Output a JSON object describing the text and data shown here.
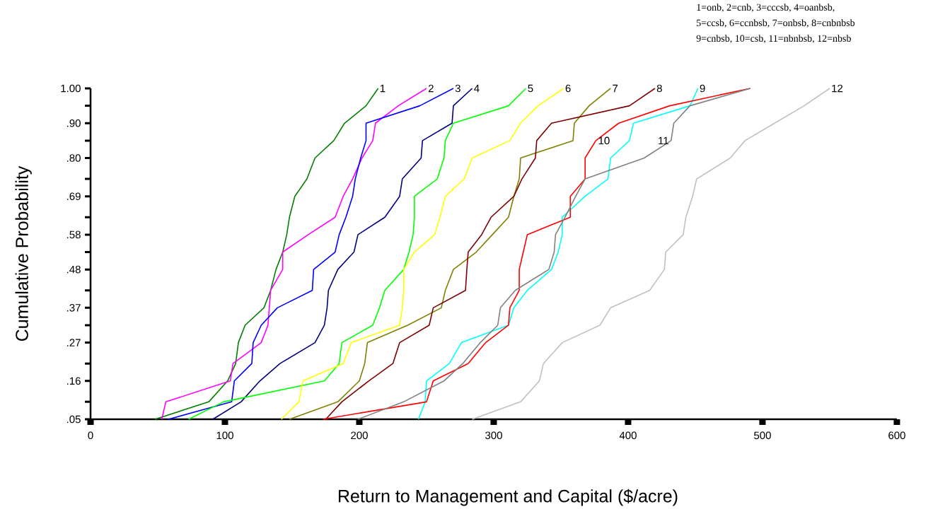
{
  "chart_data": {
    "type": "line",
    "xlabel": "Return to Management and Capital ($/acre)",
    "ylabel": "Cumulative Probability",
    "annotations": [
      "1=onb, 2=cnb, 3=cccsb, 4=oanbsb,",
      "5=ccsb, 6=ccnbsb, 7=onbsb, 8=cnbnbsb",
      "9=cnbsb, 10=csb, 11=nbnbsb, 12=nbsb"
    ],
    "xlim": [
      0,
      600
    ],
    "xticks": [
      0,
      100,
      200,
      300,
      400,
      500,
      600
    ],
    "ylim": [
      0.05,
      1.0
    ],
    "yticks": [
      {
        "value": 0.05,
        "label": ".05"
      },
      {
        "value": 0.1,
        "label": null
      },
      {
        "value": 0.16,
        "label": ".16"
      },
      {
        "value": 0.21,
        "label": null
      },
      {
        "value": 0.27,
        "label": ".27"
      },
      {
        "value": 0.32,
        "label": null
      },
      {
        "value": 0.37,
        "label": ".37"
      },
      {
        "value": 0.42,
        "label": null
      },
      {
        "value": 0.48,
        "label": ".48"
      },
      {
        "value": 0.53,
        "label": null
      },
      {
        "value": 0.58,
        "label": ".58"
      },
      {
        "value": 0.63,
        "label": null
      },
      {
        "value": 0.69,
        "label": ".69"
      },
      {
        "value": 0.74,
        "label": null
      },
      {
        "value": 0.8,
        "label": ".80"
      },
      {
        "value": 0.85,
        "label": null
      },
      {
        "value": 0.9,
        "label": ".90"
      },
      {
        "value": 0.95,
        "label": null
      },
      {
        "value": 1.0,
        "label": "1.00"
      }
    ],
    "series": [
      {
        "name": "1",
        "color": "#007f00",
        "x": [
          48,
          88,
          102,
          108,
          110,
          115,
          129,
          134,
          138,
          143,
          146,
          148,
          152,
          161,
          167,
          181,
          189,
          205,
          214
        ],
        "values": [
          0.05,
          0.1,
          0.16,
          0.21,
          0.27,
          0.32,
          0.37,
          0.42,
          0.48,
          0.53,
          0.58,
          0.63,
          0.69,
          0.74,
          0.8,
          0.85,
          0.9,
          0.95,
          1.0
        ]
      },
      {
        "name": "2",
        "color": "#ff00ff",
        "x": [
          53,
          56,
          104,
          106,
          127,
          132,
          133,
          134,
          143,
          143,
          162,
          182,
          188,
          195,
          202,
          210,
          212,
          229,
          250
        ],
        "values": [
          0.05,
          0.1,
          0.16,
          0.21,
          0.27,
          0.32,
          0.37,
          0.42,
          0.48,
          0.53,
          0.58,
          0.63,
          0.69,
          0.74,
          0.8,
          0.85,
          0.9,
          0.95,
          1.0
        ]
      },
      {
        "name": "3",
        "color": "#0000ff",
        "x": [
          58,
          105,
          107,
          120,
          121,
          127,
          139,
          165,
          166,
          182,
          185,
          190,
          195,
          197,
          201,
          205,
          205,
          245,
          270
        ],
        "values": [
          0.05,
          0.1,
          0.16,
          0.21,
          0.27,
          0.32,
          0.37,
          0.42,
          0.48,
          0.53,
          0.58,
          0.63,
          0.69,
          0.74,
          0.8,
          0.85,
          0.9,
          0.95,
          1.0
        ]
      },
      {
        "name": "4",
        "color": "#000080",
        "x": [
          91,
          112,
          126,
          141,
          167,
          174,
          176,
          177,
          184,
          196,
          199,
          219,
          230,
          232,
          246,
          247,
          269,
          270,
          284
        ],
        "values": [
          0.05,
          0.1,
          0.16,
          0.21,
          0.27,
          0.32,
          0.37,
          0.42,
          0.48,
          0.53,
          0.58,
          0.63,
          0.69,
          0.74,
          0.8,
          0.85,
          0.9,
          0.95,
          1.0
        ]
      },
      {
        "name": "5",
        "color": "#00ff00",
        "x": [
          73,
          99,
          174,
          185,
          187,
          210,
          215,
          219,
          233,
          237,
          240,
          241,
          241,
          258,
          263,
          264,
          270,
          311,
          324
        ],
        "values": [
          0.05,
          0.1,
          0.16,
          0.21,
          0.27,
          0.32,
          0.37,
          0.42,
          0.48,
          0.53,
          0.58,
          0.63,
          0.69,
          0.74,
          0.8,
          0.85,
          0.9,
          0.95,
          1.0
        ]
      },
      {
        "name": "6",
        "color": "#ffff00",
        "x": [
          142,
          155,
          158,
          188,
          194,
          230,
          232,
          233,
          233,
          241,
          256,
          260,
          264,
          278,
          284,
          312,
          320,
          333,
          352
        ],
        "values": [
          0.05,
          0.1,
          0.16,
          0.21,
          0.27,
          0.32,
          0.37,
          0.42,
          0.48,
          0.53,
          0.58,
          0.63,
          0.69,
          0.74,
          0.8,
          0.85,
          0.9,
          0.95,
          1.0
        ]
      },
      {
        "name": "7",
        "color": "#808000",
        "x": [
          148,
          184,
          200,
          204,
          206,
          236,
          261,
          264,
          270,
          287,
          299,
          311,
          315,
          319,
          320,
          359,
          360,
          371,
          387
        ],
        "values": [
          0.05,
          0.1,
          0.16,
          0.21,
          0.27,
          0.32,
          0.37,
          0.42,
          0.48,
          0.53,
          0.58,
          0.63,
          0.69,
          0.74,
          0.8,
          0.85,
          0.9,
          0.95,
          1.0
        ]
      },
      {
        "name": "8",
        "color": "#800000",
        "x": [
          175,
          187,
          207,
          225,
          230,
          252,
          255,
          279,
          280,
          281,
          291,
          298,
          315,
          321,
          331,
          332,
          343,
          401,
          420
        ],
        "values": [
          0.05,
          0.1,
          0.16,
          0.21,
          0.27,
          0.32,
          0.37,
          0.42,
          0.48,
          0.53,
          0.58,
          0.63,
          0.69,
          0.74,
          0.8,
          0.85,
          0.9,
          0.95,
          1.0
        ]
      },
      {
        "name": "9",
        "color": "#00ffff",
        "x": [
          244,
          249,
          250,
          267,
          276,
          311,
          315,
          325,
          343,
          348,
          351,
          351,
          368,
          385,
          387,
          401,
          404,
          446,
          452
        ],
        "values": [
          0.05,
          0.1,
          0.16,
          0.21,
          0.27,
          0.32,
          0.37,
          0.42,
          0.48,
          0.53,
          0.58,
          0.63,
          0.69,
          0.74,
          0.8,
          0.85,
          0.9,
          0.95,
          1.0
        ]
      },
      {
        "name": "10",
        "color": "#ff0000",
        "x": [
          173,
          250,
          255,
          281,
          294,
          311,
          312,
          319,
          319,
          322,
          325,
          357,
          357,
          368,
          368,
          376,
          393,
          431,
          491
        ],
        "values": [
          0.05,
          0.1,
          0.16,
          0.21,
          0.27,
          0.32,
          0.37,
          0.42,
          0.48,
          0.53,
          0.58,
          0.63,
          0.69,
          0.74,
          0.8,
          0.85,
          0.9,
          0.95,
          1.0
        ]
      },
      {
        "name": "11",
        "color": "#808080",
        "x": [
          199,
          233,
          263,
          277,
          290,
          303,
          305,
          316,
          341,
          345,
          346,
          353,
          361,
          368,
          412,
          432,
          434,
          446,
          491
        ],
        "values": [
          0.05,
          0.1,
          0.16,
          0.21,
          0.27,
          0.32,
          0.37,
          0.42,
          0.48,
          0.53,
          0.58,
          0.63,
          0.69,
          0.74,
          0.8,
          0.85,
          0.9,
          0.95,
          1.0
        ]
      },
      {
        "name": "12",
        "color": "#c0c0c0",
        "x": [
          284,
          320,
          334,
          337,
          351,
          379,
          387,
          416,
          427,
          428,
          441,
          443,
          448,
          451,
          476,
          487,
          509,
          531,
          550
        ],
        "values": [
          0.05,
          0.1,
          0.16,
          0.21,
          0.27,
          0.32,
          0.37,
          0.42,
          0.48,
          0.53,
          0.58,
          0.63,
          0.69,
          0.74,
          0.8,
          0.85,
          0.9,
          0.95,
          1.0
        ]
      }
    ]
  }
}
